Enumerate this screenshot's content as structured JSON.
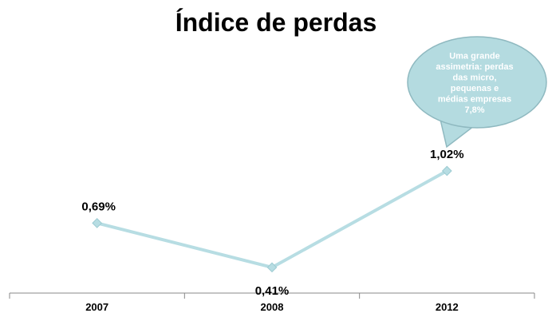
{
  "chart_data": {
    "type": "line",
    "title": "Índice de perdas",
    "categories": [
      "2007",
      "2008",
      "2012"
    ],
    "series": [
      {
        "values": [
          0.69,
          0.41,
          1.02
        ],
        "labels": [
          "0,69%",
          "0,41%",
          "1,02%"
        ]
      }
    ],
    "ylim": [
      0,
      1.5
    ],
    "grid": false,
    "annotation": {
      "lines": [
        "Uma grande",
        "assimetria: perdas",
        "das micro,",
        "pequenas e",
        "médias empresas",
        "7,8%"
      ]
    },
    "colors": {
      "line": "#b7dde3",
      "callout_fill": "#b4dbe0",
      "callout_stroke": "#8fb9c0"
    }
  }
}
